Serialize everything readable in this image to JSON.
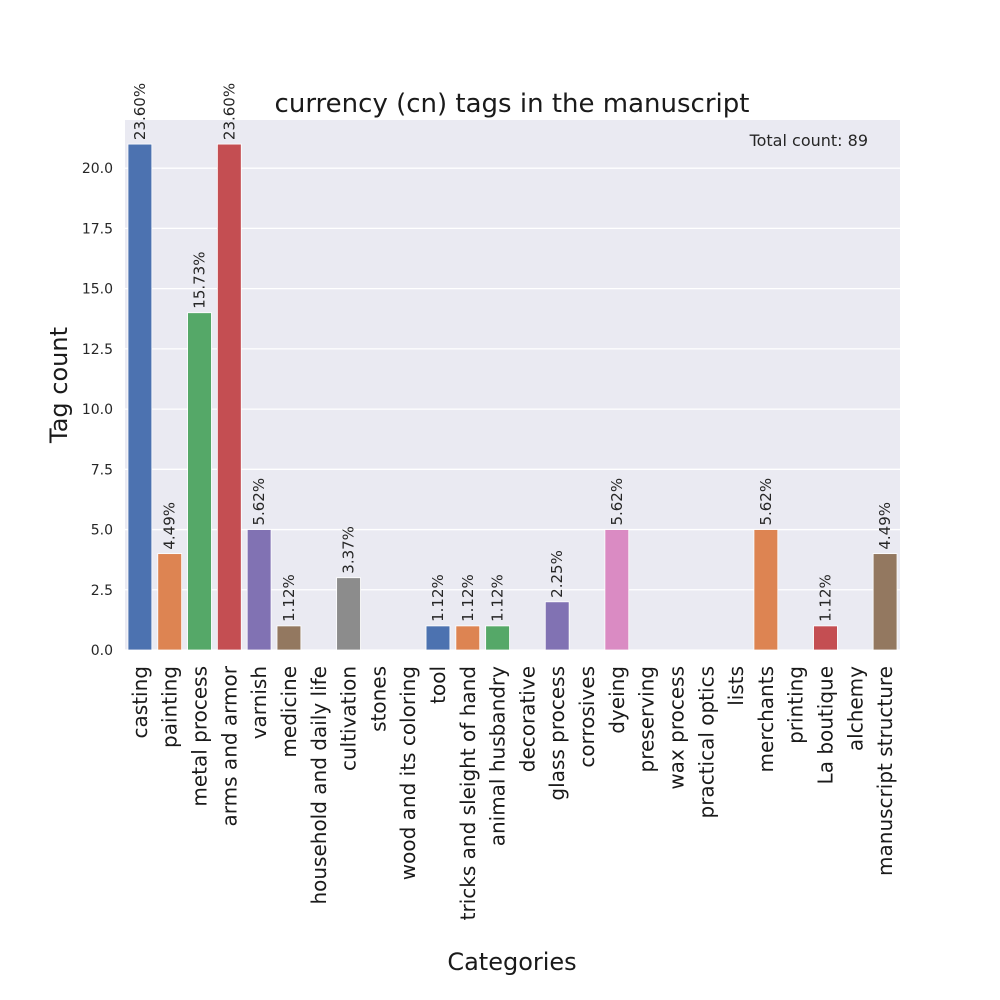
{
  "chart_data": {
    "type": "bar",
    "title": "currency (cn) tags in the manuscript",
    "xlabel": "Categories",
    "ylabel": "Tag count",
    "annotation": "Total count: 89",
    "ylim": [
      0,
      22
    ],
    "yticks": [
      "0.0",
      "2.5",
      "5.0",
      "7.5",
      "10.0",
      "12.5",
      "15.0",
      "17.5",
      "20.0"
    ],
    "grid": true,
    "categories": [
      "casting",
      "painting",
      "metal process",
      "arms and armor",
      "varnish",
      "medicine",
      "household and daily life",
      "cultivation",
      "stones",
      "wood and its coloring",
      "tool",
      "tricks and sleight of hand",
      "animal husbandry",
      "decorative",
      "glass process",
      "corrosives",
      "dyeing",
      "preserving",
      "wax process",
      "practical optics",
      "lists",
      "merchants",
      "printing",
      "La boutique",
      "alchemy",
      "manuscript structure"
    ],
    "values": [
      21,
      4,
      14,
      21,
      5,
      1,
      0,
      3,
      0,
      0,
      1,
      1,
      1,
      0,
      2,
      0,
      5,
      0,
      0,
      0,
      0,
      5,
      0,
      1,
      0,
      4
    ],
    "labels": [
      "23.60%",
      "4.49%",
      "15.73%",
      "23.60%",
      "5.62%",
      "1.12%",
      "",
      "3.37%",
      "",
      "",
      "1.12%",
      "1.12%",
      "1.12%",
      "",
      "2.25%",
      "",
      "5.62%",
      "",
      "",
      "",
      "",
      "5.62%",
      "",
      "1.12%",
      "",
      "4.49%"
    ],
    "colors": [
      "#4c72b0",
      "#dd8452",
      "#55a868",
      "#c44e52",
      "#8172b3",
      "#937860",
      "#da8bc3",
      "#8c8c8c",
      "#ccb974",
      "#64b5cd"
    ],
    "background": "#eaeaf2"
  }
}
